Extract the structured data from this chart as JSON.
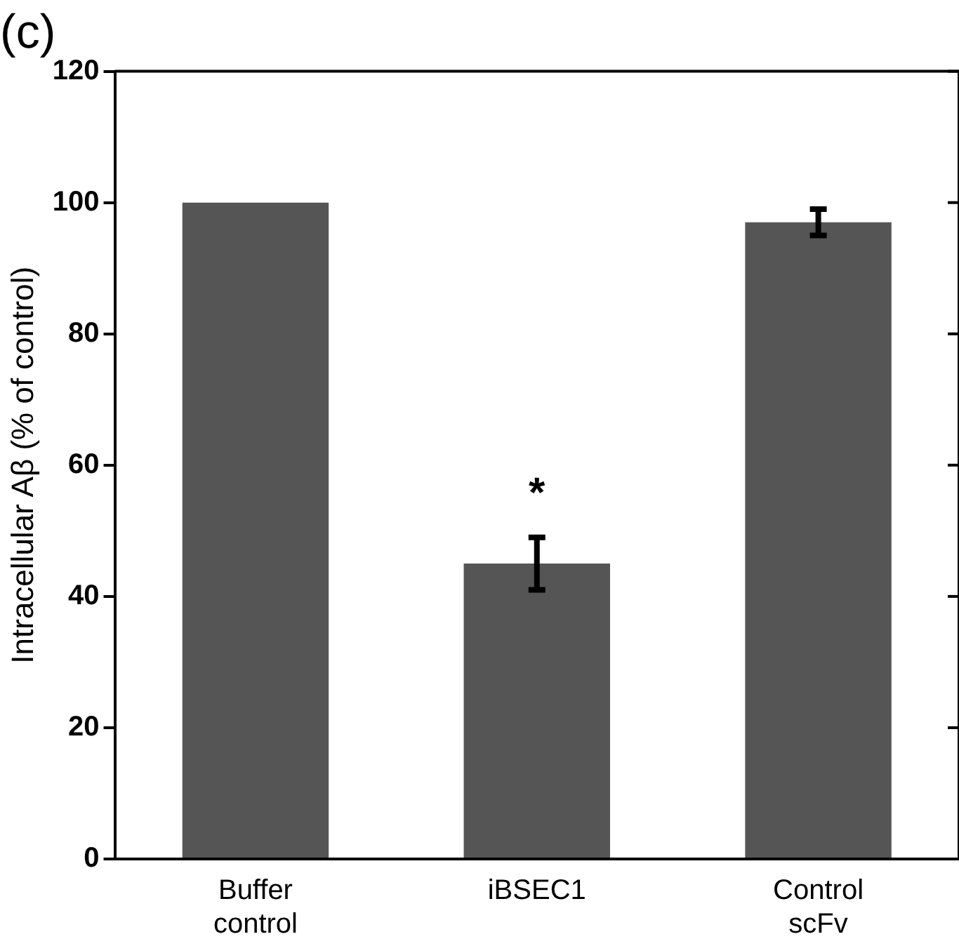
{
  "chart_data": {
    "type": "bar",
    "title": "(c)",
    "ylabel": "Intracellular Aβ (% of control)",
    "categories": [
      "Buffer control",
      "iBSEC1",
      "Control scFv"
    ],
    "values": [
      100,
      45,
      97
    ],
    "errors": [
      null,
      4,
      2
    ],
    "color": "#555555",
    "ylim": [
      0,
      120
    ],
    "yticks": [
      0,
      20,
      40,
      60,
      80,
      100,
      120
    ],
    "grid": false,
    "legend": false,
    "annotations": [
      "*"
    ]
  }
}
